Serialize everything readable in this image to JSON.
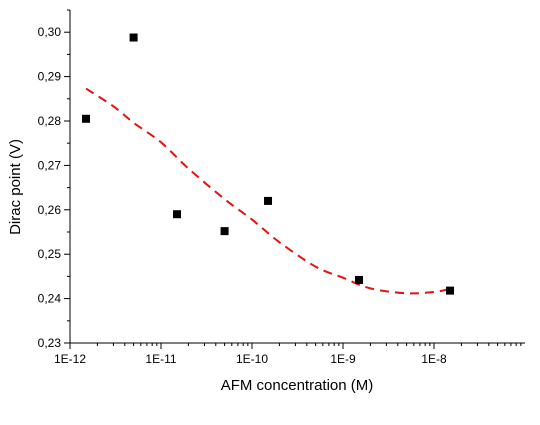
{
  "chart_data": {
    "type": "scatter",
    "xlabel": "AFM concentration (M)",
    "ylabel": "Dirac point (V)",
    "x_scale": "log",
    "xlim": [
      1e-12,
      1e-07
    ],
    "ylim": [
      0.23,
      0.305
    ],
    "x_tick_values": [
      1e-12,
      1e-11,
      1e-10,
      1e-09,
      1e-08
    ],
    "x_tick_labels": [
      "1E-12",
      "1E-11",
      "1E-10",
      "1E-9",
      "1E-8"
    ],
    "y_tick_values": [
      0.23,
      0.24,
      0.25,
      0.26,
      0.27,
      0.28,
      0.29,
      0.3
    ],
    "y_tick_labels": [
      "0,23",
      "0,24",
      "0,25",
      "0,26",
      "0,27",
      "0,28",
      "0,29",
      "0,30"
    ],
    "grid": false,
    "legend": "none",
    "series": [
      {
        "type": "scatter",
        "marker": "square",
        "color": "#000000",
        "points": [
          {
            "x": 1.5e-12,
            "y": 0.2805
          },
          {
            "x": 5e-12,
            "y": 0.2988
          },
          {
            "x": 1.5e-11,
            "y": 0.259
          },
          {
            "x": 5e-11,
            "y": 0.2552
          },
          {
            "x": 1.5e-10,
            "y": 0.262
          },
          {
            "x": 1.5e-09,
            "y": 0.2442
          },
          {
            "x": 1.5e-08,
            "y": 0.2418
          }
        ]
      },
      {
        "type": "line",
        "style": "dashed",
        "color": "#e3130f",
        "points": [
          {
            "x": 1.5e-12,
            "y": 0.2873
          },
          {
            "x": 3e-12,
            "y": 0.2833
          },
          {
            "x": 5e-12,
            "y": 0.2796
          },
          {
            "x": 1e-11,
            "y": 0.2752
          },
          {
            "x": 2e-11,
            "y": 0.2693
          },
          {
            "x": 5e-11,
            "y": 0.2624
          },
          {
            "x": 1e-10,
            "y": 0.2578
          },
          {
            "x": 2e-10,
            "y": 0.2527
          },
          {
            "x": 5e-10,
            "y": 0.2472
          },
          {
            "x": 1e-09,
            "y": 0.2447
          },
          {
            "x": 2e-09,
            "y": 0.2423
          },
          {
            "x": 5e-09,
            "y": 0.2412
          },
          {
            "x": 1e-08,
            "y": 0.2415
          },
          {
            "x": 1.5e-08,
            "y": 0.2422
          }
        ]
      }
    ]
  }
}
